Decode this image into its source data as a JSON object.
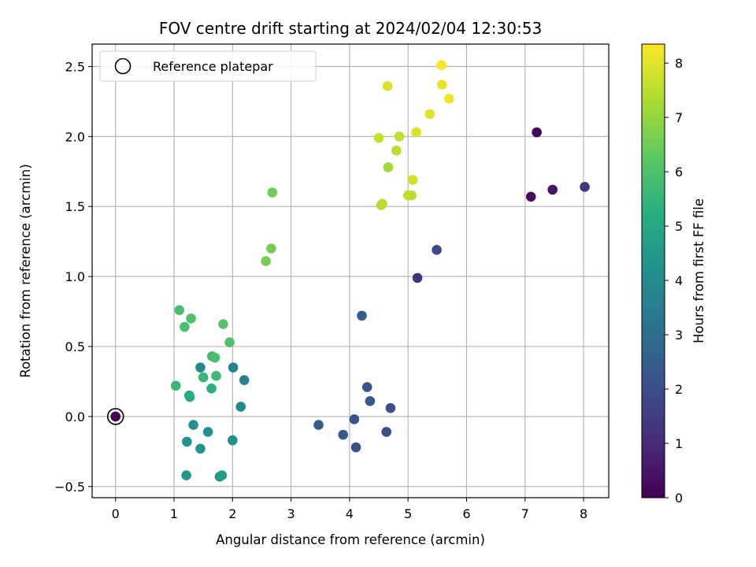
{
  "chart_data": {
    "type": "scatter",
    "title": "FOV centre drift starting at 2024/02/04 12:30:53",
    "xlabel": "Angular distance from reference (arcmin)",
    "ylabel": "Rotation from reference (arcmin)",
    "xlim": [
      -0.4,
      8.43
    ],
    "ylim": [
      -0.58,
      2.66
    ],
    "xticks": [
      0,
      1,
      2,
      3,
      4,
      5,
      6,
      7,
      8
    ],
    "yticks": [
      -0.5,
      0.0,
      0.5,
      1.0,
      1.5,
      2.0,
      2.5
    ],
    "xtick_labels": [
      "0",
      "1",
      "2",
      "3",
      "4",
      "5",
      "6",
      "7",
      "8"
    ],
    "ytick_labels": [
      "−0.5",
      "0.0",
      "0.5",
      "1.0",
      "1.5",
      "2.0",
      "2.5"
    ],
    "grid": true,
    "legend": {
      "placement": "upper-left",
      "entries": [
        "Reference platepar"
      ]
    },
    "reference_point": {
      "x": 0,
      "y": 0,
      "label": "Reference platepar"
    },
    "colorbar": {
      "label": "Hours from first FF file",
      "colormap": "viridis",
      "range": [
        0,
        8.35
      ],
      "ticks": [
        0,
        1,
        2,
        3,
        4,
        5,
        6,
        7,
        8
      ],
      "tick_labels": [
        "0",
        "1",
        "2",
        "3",
        "4",
        "5",
        "6",
        "7",
        "8"
      ]
    },
    "points": [
      {
        "x": 7.2,
        "y": 2.03,
        "hours": 0.1
      },
      {
        "x": 7.1,
        "y": 1.57,
        "hours": 0.3
      },
      {
        "x": 7.47,
        "y": 1.62,
        "hours": 0.5
      },
      {
        "x": 8.02,
        "y": 1.64,
        "hours": 1.3
      },
      {
        "x": 5.16,
        "y": 0.99,
        "hours": 1.2
      },
      {
        "x": 5.49,
        "y": 1.19,
        "hours": 1.9
      },
      {
        "x": 4.21,
        "y": 0.72,
        "hours": 2.5
      },
      {
        "x": 4.3,
        "y": 0.21,
        "hours": 2.2
      },
      {
        "x": 4.35,
        "y": 0.11,
        "hours": 2.3
      },
      {
        "x": 4.7,
        "y": 0.06,
        "hours": 2.1
      },
      {
        "x": 3.47,
        "y": -0.06,
        "hours": 2.4
      },
      {
        "x": 4.08,
        "y": -0.02,
        "hours": 2.2
      },
      {
        "x": 3.89,
        "y": -0.13,
        "hours": 2.3
      },
      {
        "x": 4.63,
        "y": -0.11,
        "hours": 2.0
      },
      {
        "x": 4.11,
        "y": -0.22,
        "hours": 2.1
      },
      {
        "x": 1.45,
        "y": 0.35,
        "hours": 3.9
      },
      {
        "x": 2.01,
        "y": 0.35,
        "hours": 3.7
      },
      {
        "x": 2.2,
        "y": 0.26,
        "hours": 3.6
      },
      {
        "x": 2.14,
        "y": 0.07,
        "hours": 3.9
      },
      {
        "x": 1.33,
        "y": -0.06,
        "hours": 4.3
      },
      {
        "x": 1.58,
        "y": -0.11,
        "hours": 4.2
      },
      {
        "x": 1.22,
        "y": -0.18,
        "hours": 4.3
      },
      {
        "x": 1.45,
        "y": -0.23,
        "hours": 4.4
      },
      {
        "x": 2.0,
        "y": -0.17,
        "hours": 4.2
      },
      {
        "x": 1.21,
        "y": -0.42,
        "hours": 4.5
      },
      {
        "x": 1.78,
        "y": -0.43,
        "hours": 4.4
      },
      {
        "x": 1.82,
        "y": -0.42,
        "hours": 4.6
      },
      {
        "x": 1.26,
        "y": 0.15,
        "hours": 4.9
      },
      {
        "x": 1.27,
        "y": 0.14,
        "hours": 5.2
      },
      {
        "x": 1.64,
        "y": 0.2,
        "hours": 5.3
      },
      {
        "x": 1.5,
        "y": 0.28,
        "hours": 5.6
      },
      {
        "x": 1.72,
        "y": 0.29,
        "hours": 5.7
      },
      {
        "x": 1.03,
        "y": 0.22,
        "hours": 5.6
      },
      {
        "x": 1.65,
        "y": 0.43,
        "hours": 5.7
      },
      {
        "x": 1.7,
        "y": 0.42,
        "hours": 5.9
      },
      {
        "x": 1.95,
        "y": 0.53,
        "hours": 6.0
      },
      {
        "x": 1.84,
        "y": 0.66,
        "hours": 6.1
      },
      {
        "x": 1.18,
        "y": 0.64,
        "hours": 5.9
      },
      {
        "x": 1.29,
        "y": 0.7,
        "hours": 6.0
      },
      {
        "x": 1.09,
        "y": 0.76,
        "hours": 5.9
      },
      {
        "x": 2.57,
        "y": 1.11,
        "hours": 6.6
      },
      {
        "x": 2.66,
        "y": 1.2,
        "hours": 6.6
      },
      {
        "x": 2.68,
        "y": 1.6,
        "hours": 6.5
      },
      {
        "x": 4.54,
        "y": 1.51,
        "hours": 7.3
      },
      {
        "x": 4.56,
        "y": 1.52,
        "hours": 7.5
      },
      {
        "x": 5.0,
        "y": 1.58,
        "hours": 7.6
      },
      {
        "x": 5.06,
        "y": 1.58,
        "hours": 7.5
      },
      {
        "x": 5.08,
        "y": 1.69,
        "hours": 7.8
      },
      {
        "x": 4.66,
        "y": 1.78,
        "hours": 7.2
      },
      {
        "x": 4.8,
        "y": 1.9,
        "hours": 7.5
      },
      {
        "x": 4.5,
        "y": 1.99,
        "hours": 7.7
      },
      {
        "x": 4.85,
        "y": 2.0,
        "hours": 7.6
      },
      {
        "x": 5.14,
        "y": 2.03,
        "hours": 7.9
      },
      {
        "x": 5.37,
        "y": 2.16,
        "hours": 8.0
      },
      {
        "x": 5.7,
        "y": 2.27,
        "hours": 8.2
      },
      {
        "x": 4.65,
        "y": 2.36,
        "hours": 7.9
      },
      {
        "x": 5.58,
        "y": 2.37,
        "hours": 8.1
      },
      {
        "x": 5.57,
        "y": 2.51,
        "hours": 8.3
      }
    ]
  }
}
